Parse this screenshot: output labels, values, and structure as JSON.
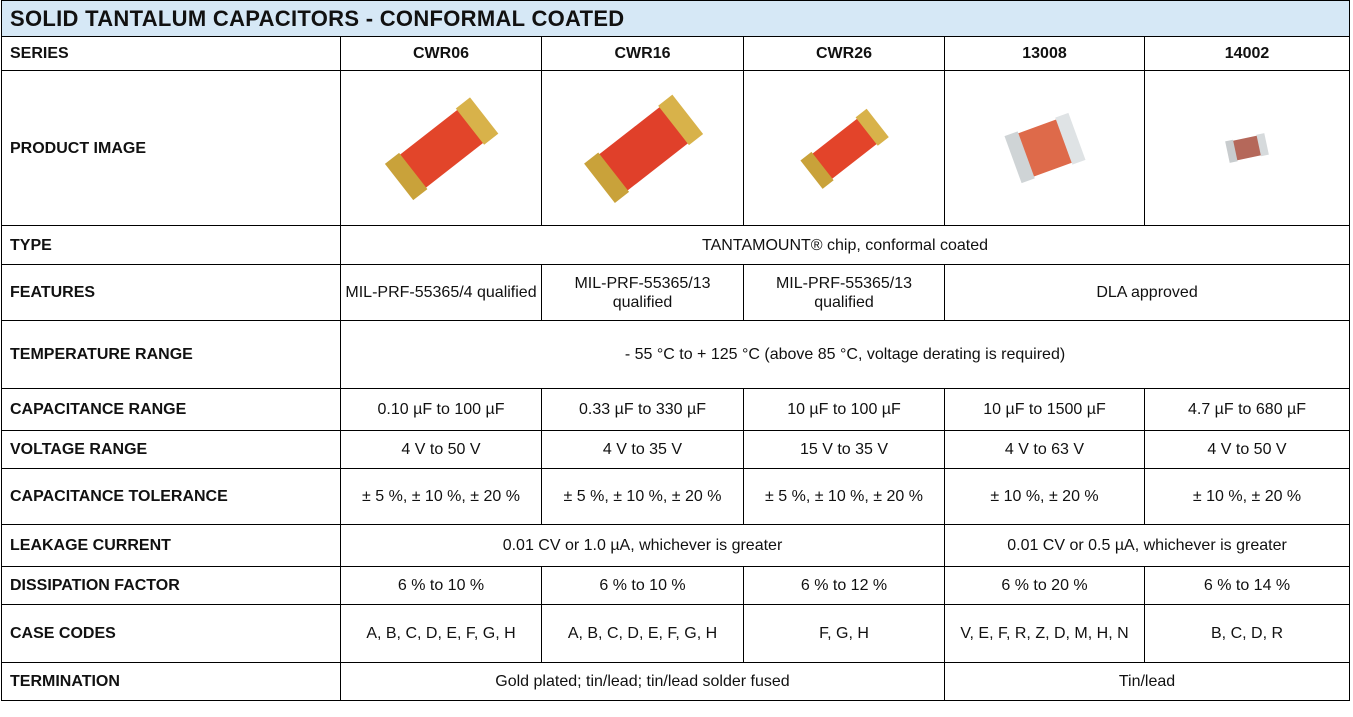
{
  "title": "SOLID TANTALUM CAPACITORS - CONFORMAL COATED",
  "table": {
    "header": [
      "SERIES",
      "CWR06",
      "CWR16",
      "CWR26",
      "13008",
      "14002"
    ],
    "image_row_label": "PRODUCT IMAGE",
    "rows": [
      [
        "TYPE",
        "TANTAMOUNT® chip, conformal coated"
      ],
      [
        "FEATURES",
        "MIL-PRF-55365/4 qualified",
        "MIL-PRF-55365/13 qualified",
        "MIL-PRF-55365/13 qualified",
        "DLA approved"
      ],
      [
        "TEMPERATURE RANGE",
        "- 55 °C to + 125 °C (above 85 °C, voltage derating is required)"
      ],
      [
        "CAPACITANCE RANGE",
        "0.10 µF to 100 µF",
        "0.33 µF to 330 µF",
        "10 µF to 100 µF",
        "10 µF to 1500 µF",
        "4.7 µF to 680 µF"
      ],
      [
        "VOLTAGE RANGE",
        "4 V to 50 V",
        "4 V to 35 V",
        "15 V to 35 V",
        "4 V to 63 V",
        "4 V to 50 V"
      ],
      [
        "CAPACITANCE TOLERANCE",
        "± 5 %, ± 10 %, ± 20 %",
        "± 5 %, ± 10 %, ± 20 %",
        "± 5 %, ± 10 %, ± 20 %",
        "± 10 %, ± 20 %",
        "± 10 %, ± 20 %"
      ],
      [
        "LEAKAGE CURRENT",
        "0.01 CV or 1.0 µA, whichever is greater",
        "0.01 CV or 0.5 µA, whichever is greater"
      ],
      [
        "DISSIPATION FACTOR",
        "6 % to 10 %",
        "6 % to 10 %",
        "6 % to 12 %",
        "6 % to 20 %",
        "6 % to 14 %"
      ],
      [
        "CASE CODES",
        "A, B, C, D, E, F, G, H",
        "A, B, C, D, E, F, G, H",
        "F, G, H",
        "V, E, F, R, Z, D, M, H, N",
        "B, C, D, R"
      ],
      [
        "TERMINATION",
        "Gold plated; tin/lead; tin/lead solder fused",
        "Tin/lead"
      ]
    ]
  }
}
